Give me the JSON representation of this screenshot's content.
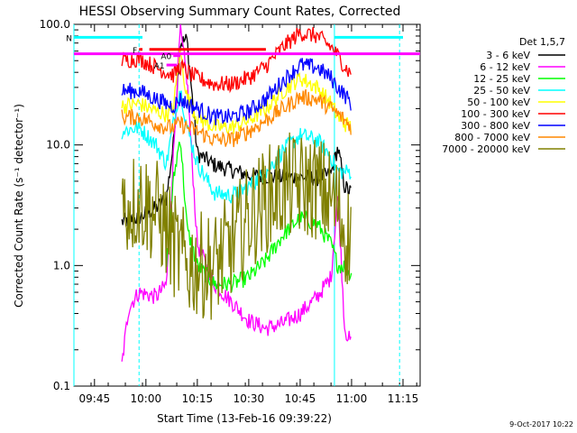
{
  "chart_data": {
    "type": "line",
    "title": "HESSI Observing Summary Count Rates, Corrected",
    "xlabel": "Start Time (13-Feb-16 09:39:22)",
    "ylabel": "Corrected Count Rate (s⁻¹ detector⁻¹)",
    "y_scale": "log",
    "ylim": [
      0.1,
      100
    ],
    "y_ticks": [
      {
        "v": 0.1,
        "label": "0.1"
      },
      {
        "v": 1,
        "label": "1.0"
      },
      {
        "v": 10,
        "label": "10.0"
      },
      {
        "v": 100,
        "label": "100.0"
      }
    ],
    "xlim": [
      "09:39",
      "11:20"
    ],
    "x_ticks": [
      "09:45",
      "10:00",
      "10:15",
      "10:30",
      "10:45",
      "11:00",
      "11:15"
    ],
    "grid": false,
    "legend_title": "Det 1,5,7",
    "legend_position": "outside-right",
    "series": [
      {
        "name": "3 - 6 keV",
        "color": "#000000",
        "t": [
          "09:53",
          "09:58",
          "10:03",
          "10:06",
          "10:08",
          "10:10",
          "10:12",
          "10:15",
          "10:20",
          "10:25",
          "10:30",
          "10:35",
          "10:40",
          "10:45",
          "10:50",
          "10:54",
          "10:56",
          "10:58",
          "11:00"
        ],
        "values": [
          2.3,
          2.5,
          3.0,
          3.6,
          10,
          70,
          75,
          8.5,
          6.8,
          6.2,
          5.6,
          5.5,
          5.4,
          5.4,
          5.3,
          5.7,
          9.5,
          4.5,
          4.0
        ]
      },
      {
        "name": "6 - 12 keV",
        "color": "#ff00ff",
        "t": [
          "09:53",
          "09:55",
          "09:58",
          "10:03",
          "10:06",
          "10:08",
          "10:10",
          "10:12",
          "10:15",
          "10:20",
          "10:25",
          "10:30",
          "10:35",
          "10:40",
          "10:45",
          "10:50",
          "10:54",
          "10:56",
          "10:58",
          "11:00"
        ],
        "values": [
          0.15,
          0.45,
          0.6,
          0.55,
          0.7,
          8,
          90,
          35,
          1.5,
          0.7,
          0.5,
          0.35,
          0.3,
          0.33,
          0.4,
          0.55,
          0.8,
          4,
          0.3,
          0.22
        ]
      },
      {
        "name": "12 - 25 keV",
        "color": "#00ff00",
        "t": [
          "10:06",
          "10:08",
          "10:10",
          "10:12",
          "10:15",
          "10:20",
          "10:25",
          "10:30",
          "10:35",
          "10:40",
          "10:45",
          "10:50",
          "10:54",
          "10:56",
          "10:58",
          "11:00"
        ],
        "values": [
          1.0,
          5,
          12,
          2.0,
          1.0,
          0.7,
          0.7,
          0.8,
          1.1,
          1.8,
          2.5,
          2.2,
          1.5,
          1.0,
          1.0,
          0.8
        ]
      },
      {
        "name": "25 - 50 keV",
        "color": "#00ffff",
        "t": [
          "09:53",
          "09:58",
          "10:03",
          "10:06",
          "10:08",
          "10:10",
          "10:12",
          "10:15",
          "10:20",
          "10:25",
          "10:30",
          "10:35",
          "10:40",
          "10:45",
          "10:50",
          "10:54",
          "10:56",
          "10:58",
          "11:00"
        ],
        "values": [
          13,
          14,
          10,
          7,
          15,
          30,
          14,
          7,
          4.0,
          3.8,
          4.5,
          6,
          9,
          12,
          11,
          8,
          6,
          6,
          6
        ]
      },
      {
        "name": "50 - 100 keV",
        "color": "#ffff00",
        "t": [
          "09:53",
          "09:58",
          "10:03",
          "10:06",
          "10:08",
          "10:10",
          "10:12",
          "10:15",
          "10:20",
          "10:25",
          "10:30",
          "10:35",
          "10:40",
          "10:45",
          "10:50",
          "10:54",
          "10:56",
          "10:58",
          "11:00"
        ],
        "values": [
          21,
          22,
          19,
          18,
          20,
          60,
          25,
          17,
          14,
          14,
          16,
          20,
          28,
          36,
          30,
          22,
          17,
          15,
          14
        ]
      },
      {
        "name": "100 - 300 keV",
        "color": "#ff0000",
        "t": [
          "09:53",
          "09:58",
          "10:03",
          "10:06",
          "10:08",
          "10:10",
          "10:12",
          "10:15",
          "10:20",
          "10:25",
          "10:30",
          "10:35",
          "10:40",
          "10:45",
          "10:50",
          "10:54",
          "10:56",
          "10:58",
          "11:00"
        ],
        "values": [
          50,
          52,
          44,
          40,
          38,
          45,
          40,
          36,
          32,
          32,
          36,
          45,
          65,
          85,
          80,
          65,
          55,
          45,
          38
        ]
      },
      {
        "name": "300 - 800 keV",
        "color": "#0000ff",
        "t": [
          "09:53",
          "09:58",
          "10:03",
          "10:06",
          "10:08",
          "10:10",
          "10:12",
          "10:15",
          "10:20",
          "10:25",
          "10:30",
          "10:35",
          "10:40",
          "10:45",
          "10:50",
          "10:54",
          "10:56",
          "10:58",
          "11:00"
        ],
        "values": [
          28,
          28,
          24,
          22,
          21,
          24,
          22,
          20,
          17,
          17,
          19,
          24,
          34,
          46,
          44,
          36,
          30,
          26,
          22
        ]
      },
      {
        "name": "800 - 7000 keV",
        "color": "#ff8800",
        "t": [
          "09:53",
          "09:58",
          "10:03",
          "10:06",
          "10:08",
          "10:10",
          "10:12",
          "10:15",
          "10:20",
          "10:25",
          "10:30",
          "10:35",
          "10:40",
          "10:45",
          "10:50",
          "10:54",
          "10:56",
          "10:58",
          "11:00"
        ],
        "values": [
          17,
          17,
          15,
          14,
          14,
          15,
          14,
          13,
          11,
          11,
          13,
          16,
          20,
          25,
          24,
          20,
          18,
          16,
          14
        ]
      },
      {
        "name": "7000 - 20000 keV",
        "color": "#808000",
        "t": [
          "09:53",
          "09:58",
          "10:03",
          "10:06",
          "10:08",
          "10:10",
          "10:12",
          "10:15",
          "10:20",
          "10:25",
          "10:30",
          "10:35",
          "10:40",
          "10:45",
          "10:50",
          "10:54",
          "10:56",
          "10:58",
          "11:00"
        ],
        "values": [
          3.0,
          3.5,
          2.8,
          2.0,
          1.5,
          1.2,
          1.0,
          1.0,
          1.0,
          1.5,
          2.5,
          3.5,
          4.5,
          4.5,
          4.5,
          3.5,
          3.0,
          2.0,
          1.5
        ]
      }
    ],
    "annotations": {
      "flag_rows": [
        {
          "label": "N",
          "color": "#00ffff",
          "value": 78,
          "segments": [
            [
              "09:39",
              "09:59"
            ],
            [
              "10:55",
              "11:15"
            ]
          ]
        },
        {
          "label": "F",
          "color": "#ff0000",
          "value": 62,
          "segments": [
            [
              "09:58",
              "09:59"
            ],
            [
              "10:01",
              "10:35"
            ]
          ]
        },
        {
          "label": "A1",
          "color": "#ff00ff",
          "value": 46,
          "segments": [
            [
              "10:06",
              "10:09"
            ]
          ]
        },
        {
          "label": "A0",
          "color": "#ff00ff",
          "value": 55,
          "segments": [
            [
              "10:08",
              "10:10"
            ]
          ]
        }
      ],
      "horizontal_line": {
        "value": 57,
        "color": "#ff00ff"
      },
      "vertical_lines": [
        {
          "t": "09:39",
          "color": "#00ffff",
          "style": "solid"
        },
        {
          "t": "09:58",
          "color": "#00ffff",
          "style": "dashed"
        },
        {
          "t": "10:55",
          "color": "#00ffff",
          "style": "solid"
        },
        {
          "t": "11:14",
          "color": "#00ffff",
          "style": "dashed"
        }
      ]
    },
    "footer_date": "9-Oct-2017 10:22"
  }
}
